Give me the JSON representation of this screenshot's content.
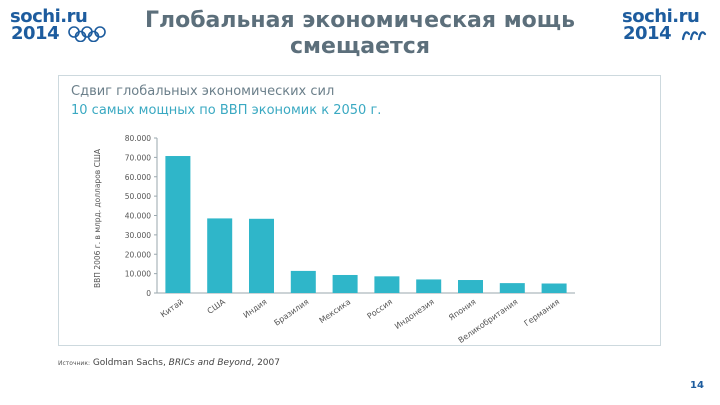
{
  "header": {
    "title_line1": "Глобальная экономическая мощь",
    "title_line2": "смещается",
    "logo_left": {
      "line1": "sochi.ru",
      "line2": "2014"
    },
    "logo_right": {
      "line1": "sochi.ru",
      "line2": "2014"
    }
  },
  "colors": {
    "title": "#5c6f7b",
    "bar": "#2fb6c9",
    "logo": "#1d5c9e",
    "subtitle": "#3aa9c2"
  },
  "icons": {
    "left": "olympic-rings-icon",
    "right": "paralympic-agitos-icon"
  },
  "chart_data": {
    "type": "bar",
    "title": "Сдвиг глобальных экономических сил",
    "subtitle": "10 самых мощных по ВВП экономик к 2050 г.",
    "ylabel": "ВВП 2006 г. в млрд. долларов США",
    "ylim": [
      0,
      80000
    ],
    "yticks": [
      "80.000",
      "70.000",
      "60.000",
      "50.000",
      "40.000",
      "30.000",
      "20.000",
      "10.000",
      "0"
    ],
    "categories": [
      "Китай",
      "США",
      "Индия",
      "Бразилия",
      "Мексика",
      "Россия",
      "Индонезия",
      "Япония",
      "Великобритания",
      "Германия"
    ],
    "values": [
      70700,
      38500,
      38300,
      11400,
      9300,
      8600,
      7000,
      6700,
      5100,
      4900
    ],
    "grid": false,
    "legend": "none"
  },
  "source": {
    "label": "Источник:",
    "text_plain": " Goldman Sachs, ",
    "text_italic": "BRICs and Beyond",
    "text_year": ", 2007"
  },
  "page_number": "14"
}
